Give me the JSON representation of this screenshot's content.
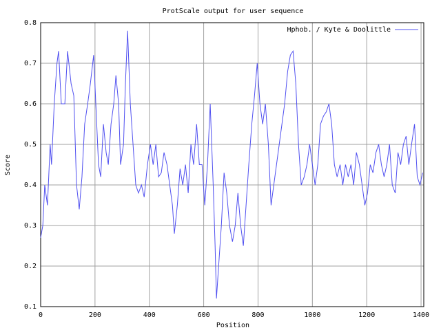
{
  "chart_data": {
    "type": "line",
    "title": "ProtScale output for user sequence",
    "xlabel": "Position",
    "ylabel": "Score",
    "x": [
      0,
      8,
      15,
      25,
      35,
      40,
      50,
      60,
      66,
      76,
      89,
      99,
      112,
      122,
      132,
      142,
      152,
      162,
      173,
      183,
      195,
      203,
      213,
      221,
      231,
      241,
      249,
      259,
      269,
      277,
      287,
      294,
      305,
      312,
      320,
      330,
      340,
      350,
      360,
      371,
      381,
      393,
      404,
      414,
      424,
      434,
      444,
      454,
      465,
      475,
      485,
      492,
      503,
      513,
      523,
      533,
      543,
      553,
      563,
      574,
      584,
      594,
      604,
      614,
      624,
      635,
      642,
      647,
      655,
      665,
      675,
      685,
      695,
      706,
      716,
      726,
      736,
      746,
      756,
      766,
      777,
      787,
      797,
      807,
      817,
      827,
      838,
      848,
      858,
      868,
      878,
      888,
      898,
      909,
      919,
      929,
      939,
      949,
      959,
      970,
      980,
      990,
      1000,
      1010,
      1020,
      1030,
      1041,
      1051,
      1061,
      1071,
      1081,
      1091,
      1102,
      1112,
      1122,
      1132,
      1142,
      1152,
      1162,
      1173,
      1183,
      1193,
      1203,
      1213,
      1223,
      1234,
      1244,
      1254,
      1264,
      1274,
      1284,
      1294,
      1305,
      1315,
      1325,
      1335,
      1345,
      1355,
      1365,
      1376,
      1386,
      1396,
      1406
    ],
    "series": [
      {
        "name": "Hphob. / Kyte & Doolittle",
        "color": "#5050f0",
        "values": [
          0.27,
          0.3,
          0.4,
          0.35,
          0.5,
          0.45,
          0.6,
          0.7,
          0.73,
          0.6,
          0.6,
          0.73,
          0.65,
          0.62,
          0.4,
          0.34,
          0.42,
          0.55,
          0.6,
          0.65,
          0.72,
          0.6,
          0.45,
          0.42,
          0.55,
          0.48,
          0.45,
          0.55,
          0.6,
          0.67,
          0.6,
          0.45,
          0.5,
          0.65,
          0.78,
          0.6,
          0.5,
          0.4,
          0.38,
          0.4,
          0.37,
          0.45,
          0.5,
          0.45,
          0.5,
          0.42,
          0.43,
          0.48,
          0.45,
          0.4,
          0.35,
          0.28,
          0.35,
          0.44,
          0.4,
          0.45,
          0.38,
          0.5,
          0.45,
          0.55,
          0.45,
          0.45,
          0.35,
          0.45,
          0.6,
          0.4,
          0.25,
          0.12,
          0.2,
          0.3,
          0.43,
          0.38,
          0.3,
          0.26,
          0.3,
          0.38,
          0.3,
          0.25,
          0.35,
          0.45,
          0.55,
          0.62,
          0.7,
          0.6,
          0.55,
          0.6,
          0.5,
          0.35,
          0.4,
          0.45,
          0.5,
          0.55,
          0.6,
          0.68,
          0.72,
          0.73,
          0.65,
          0.5,
          0.4,
          0.42,
          0.45,
          0.5,
          0.45,
          0.4,
          0.45,
          0.55,
          0.57,
          0.58,
          0.6,
          0.55,
          0.45,
          0.42,
          0.45,
          0.4,
          0.45,
          0.42,
          0.45,
          0.4,
          0.48,
          0.45,
          0.4,
          0.35,
          0.38,
          0.45,
          0.43,
          0.48,
          0.5,
          0.45,
          0.42,
          0.45,
          0.5,
          0.4,
          0.38,
          0.48,
          0.45,
          0.5,
          0.52,
          0.45,
          0.5,
          0.55,
          0.42,
          0.4,
          0.43
        ]
      }
    ],
    "xlim": [
      0,
      1410
    ],
    "xticks": [
      0,
      200,
      400,
      600,
      800,
      1000,
      1200,
      1400
    ],
    "ylim": [
      0.1,
      0.8
    ],
    "yticks": [
      0.1,
      0.2,
      0.3,
      0.4,
      0.5,
      0.6,
      0.7,
      0.8
    ],
    "grid": true,
    "legend": "top-right"
  }
}
